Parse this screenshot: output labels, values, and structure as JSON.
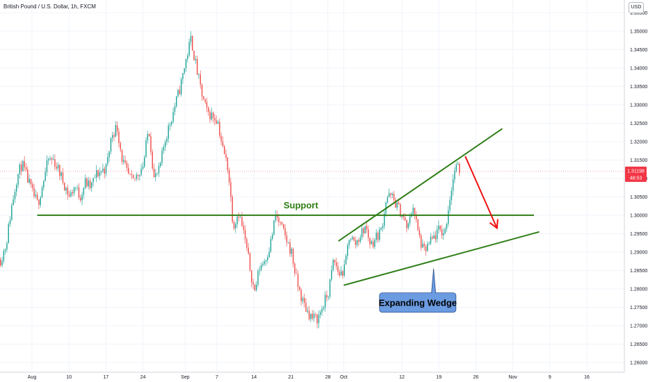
{
  "header": {
    "title": "British Pound / U.S. Dollar, 1h, FXCM",
    "currency": "USD"
  },
  "price_badge": {
    "price": "1.31198",
    "countdown": "48:53",
    "color": "#f23645"
  },
  "colors": {
    "up": "#26a69a",
    "down": "#ef5350",
    "annotation": "#2e7d15",
    "arrow": "#ee1111",
    "callout_fill": "#6b9be0"
  },
  "chart_data": {
    "type": "candlestick",
    "title": "British Pound / U.S. Dollar, 1h, FXCM",
    "ylim": [
      1.2585,
      1.3575
    ],
    "y_ticks": [
      1.355,
      1.35,
      1.345,
      1.34,
      1.335,
      1.33,
      1.325,
      1.32,
      1.315,
      1.31,
      1.305,
      1.3,
      1.295,
      1.29,
      1.285,
      1.28,
      1.275,
      1.27,
      1.265,
      1.26
    ],
    "x_ticks": [
      "Aug",
      "10",
      "17",
      "24",
      "Sep",
      "7",
      "14",
      "21",
      "28",
      "Oct",
      "12",
      "19",
      "26",
      "Nov",
      "9",
      "16"
    ],
    "x_tick_dates": [
      "2020-08-03",
      "2020-08-10",
      "2020-08-17",
      "2020-08-24",
      "2020-09-01",
      "2020-09-07",
      "2020-09-14",
      "2020-09-21",
      "2020-09-28",
      "2020-10-01",
      "2020-10-12",
      "2020-10-19",
      "2020-10-26",
      "2020-11-02",
      "2020-11-09",
      "2020-11-16"
    ],
    "trajectory": [
      [
        "2020-07-28",
        1.288
      ],
      [
        "2020-07-29",
        1.292
      ],
      [
        "2020-07-30",
        1.302
      ],
      [
        "2020-07-31",
        1.31
      ],
      [
        "2020-08-01",
        1.314
      ],
      [
        "2020-08-03",
        1.306
      ],
      [
        "2020-08-04",
        1.303
      ],
      [
        "2020-08-05",
        1.309
      ],
      [
        "2020-08-06",
        1.315
      ],
      [
        "2020-08-07",
        1.315
      ],
      [
        "2020-08-08",
        1.312
      ],
      [
        "2020-08-10",
        1.305
      ],
      [
        "2020-08-11",
        1.308
      ],
      [
        "2020-08-12",
        1.305
      ],
      [
        "2020-08-13",
        1.309
      ],
      [
        "2020-08-14",
        1.3075
      ],
      [
        "2020-08-15",
        1.311
      ],
      [
        "2020-08-17",
        1.313
      ],
      [
        "2020-08-18",
        1.322
      ],
      [
        "2020-08-19",
        1.324
      ],
      [
        "2020-08-20",
        1.315
      ],
      [
        "2020-08-21",
        1.311
      ],
      [
        "2020-08-22",
        1.309
      ],
      [
        "2020-08-24",
        1.314
      ],
      [
        "2020-08-25",
        1.324
      ],
      [
        "2020-08-26",
        1.31
      ],
      [
        "2020-08-27",
        1.312
      ],
      [
        "2020-08-28",
        1.32
      ],
      [
        "2020-08-29",
        1.325
      ],
      [
        "2020-08-31",
        1.335
      ],
      [
        "2020-09-01",
        1.342
      ],
      [
        "2020-09-02",
        1.348
      ],
      [
        "2020-09-03",
        1.34
      ],
      [
        "2020-09-04",
        1.333
      ],
      [
        "2020-09-05",
        1.328
      ],
      [
        "2020-09-07",
        1.326
      ],
      [
        "2020-09-08",
        1.318
      ],
      [
        "2020-09-09",
        1.313
      ],
      [
        "2020-09-10",
        1.297
      ],
      [
        "2020-09-11",
        1.301
      ],
      [
        "2020-09-12",
        1.295
      ],
      [
        "2020-09-14",
        1.279
      ],
      [
        "2020-09-15",
        1.286
      ],
      [
        "2020-09-16",
        1.288
      ],
      [
        "2020-09-17",
        1.292
      ],
      [
        "2020-09-18",
        1.3
      ],
      [
        "2020-09-19",
        1.297
      ],
      [
        "2020-09-21",
        1.29
      ],
      [
        "2020-09-22",
        1.282
      ],
      [
        "2020-09-23",
        1.277
      ],
      [
        "2020-09-24",
        1.274
      ],
      [
        "2020-09-25",
        1.272
      ],
      [
        "2020-09-26",
        1.272
      ],
      [
        "2020-09-28",
        1.279
      ],
      [
        "2020-09-29",
        1.288
      ],
      [
        "2020-09-30",
        1.284
      ],
      [
        "2020-10-01",
        1.285
      ],
      [
        "2020-10-02",
        1.295
      ],
      [
        "2020-10-03",
        1.292
      ],
      [
        "2020-10-05",
        1.297
      ],
      [
        "2020-10-06",
        1.292
      ],
      [
        "2020-10-07",
        1.294
      ],
      [
        "2020-10-08",
        1.296
      ],
      [
        "2020-10-09",
        1.305
      ],
      [
        "2020-10-10",
        1.305
      ],
      [
        "2020-10-12",
        1.3
      ],
      [
        "2020-10-13",
        1.296
      ],
      [
        "2020-10-14",
        1.303
      ],
      [
        "2020-10-15",
        1.295
      ],
      [
        "2020-10-16",
        1.29
      ],
      [
        "2020-10-17",
        1.292
      ],
      [
        "2020-10-19",
        1.296
      ],
      [
        "2020-10-20",
        1.295
      ],
      [
        "2020-10-21",
        1.305
      ],
      [
        "2020-10-22",
        1.313
      ],
      [
        "2020-10-23",
        1.312
      ]
    ],
    "annotations": [
      {
        "kind": "hline",
        "label": "Support",
        "value": 1.3,
        "from": "2020-08-04",
        "to": "2020-11-06"
      },
      {
        "kind": "trendline",
        "from": [
          "2020-09-30",
          1.293
        ],
        "to": [
          "2020-10-31",
          1.3235
        ]
      },
      {
        "kind": "trendline",
        "from": [
          "2020-10-01",
          1.281
        ],
        "to": [
          "2020-11-07",
          1.2955
        ]
      },
      {
        "kind": "arrow",
        "from": [
          "2020-10-24",
          1.316
        ],
        "to": [
          "2020-10-30",
          1.2965
        ]
      },
      {
        "kind": "callout",
        "label": "Expanding Wedge",
        "at": [
          "2020-10-15",
          1.2763
        ],
        "pointer": [
          "2020-10-18",
          1.2855
        ]
      }
    ]
  }
}
